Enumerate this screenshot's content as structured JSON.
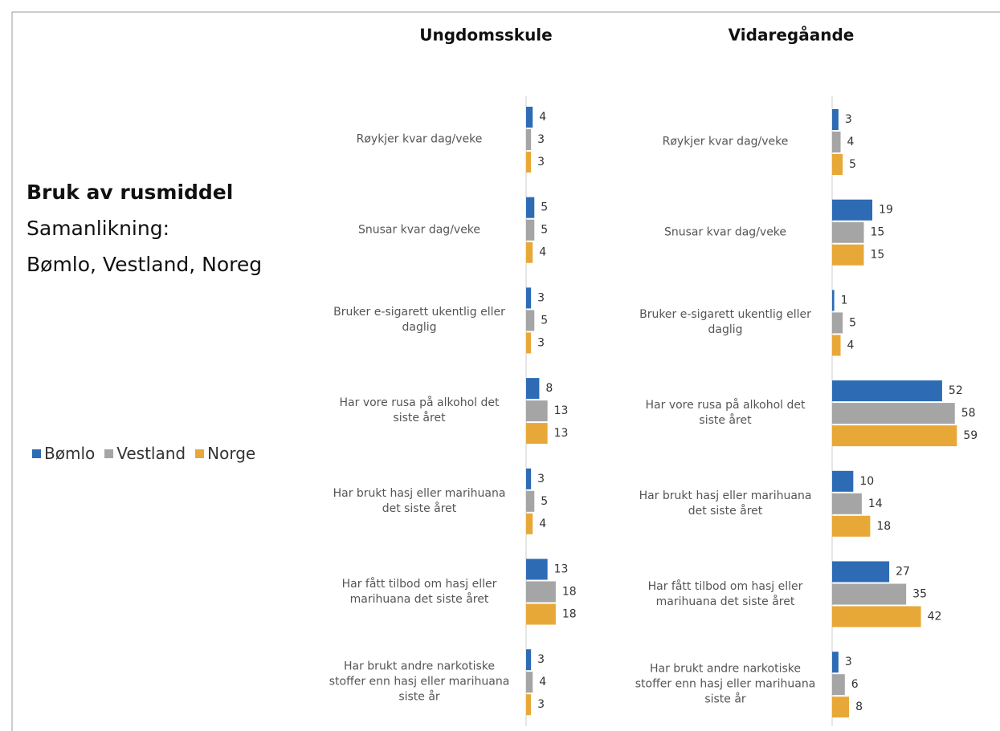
{
  "heading": {
    "title": "Bruk av rusmiddel",
    "lines": [
      "Samanlikning:",
      "Bømlo, Vestland, Noreg"
    ]
  },
  "chart_data": [
    {
      "type": "bar",
      "orientation": "horizontal",
      "title": "Ungdomsskule",
      "categories": [
        "Røykjer kvar dag/veke",
        "Snusar kvar dag/veke",
        "Bruker e-sigarett ukentlig eller daglig",
        "Har vore rusa på alkohol det siste året",
        "Har brukt hasj eller marihuana det siste året",
        "Har fått tilbod om hasj eller marihuana det siste året",
        "Har brukt andre narkotiske stoffer enn hasj eller marihuana siste år"
      ],
      "series": [
        {
          "name": "Bømlo",
          "color": "#2e6bb5",
          "values": [
            4,
            5,
            3,
            8,
            3,
            13,
            3
          ]
        },
        {
          "name": "Vestland",
          "color": "#a5a5a5",
          "values": [
            3,
            5,
            5,
            13,
            5,
            18,
            4
          ]
        },
        {
          "name": "Norge",
          "color": "#e8a838",
          "values": [
            3,
            4,
            3,
            13,
            4,
            18,
            3
          ]
        }
      ],
      "xlim": [
        0,
        60
      ],
      "legend": "left"
    },
    {
      "type": "bar",
      "orientation": "horizontal",
      "title": "Vidaregåande",
      "categories": [
        "Røykjer kvar dag/veke",
        "Snusar kvar dag/veke",
        "Bruker e-sigarett ukentlig eller daglig",
        "Har vore rusa på alkohol det siste året",
        "Har brukt hasj eller marihuana det siste året",
        "Har fått tilbod om hasj eller marihuana det siste året",
        "Har brukt andre narkotiske stoffer enn hasj eller marihuana siste år"
      ],
      "series": [
        {
          "name": "Bømlo",
          "color": "#2e6bb5",
          "values": [
            3,
            19,
            1,
            52,
            10,
            27,
            3
          ]
        },
        {
          "name": "Vestland",
          "color": "#a5a5a5",
          "values": [
            4,
            15,
            5,
            58,
            14,
            35,
            6
          ]
        },
        {
          "name": "Norge",
          "color": "#e8a838",
          "values": [
            5,
            15,
            4,
            59,
            18,
            42,
            8
          ]
        }
      ],
      "xlim": [
        0,
        60
      ]
    }
  ]
}
